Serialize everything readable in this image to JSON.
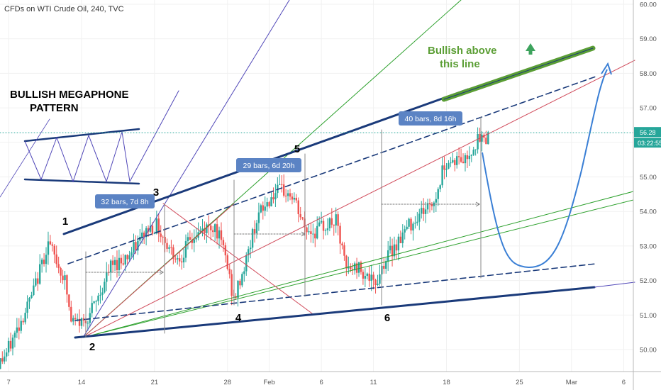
{
  "header": {
    "title": "CFDs on WTI Crude Oil, 240, TVC"
  },
  "chart_data": {
    "type": "candlestick",
    "title": "CFDs on WTI Crude Oil, 240, TVC",
    "yaxis": {
      "side": "right",
      "ylim": [
        49.5,
        60.2
      ],
      "ticks": [
        "60.00",
        "59.00",
        "58.00",
        "57.00",
        "56.00",
        "55.00",
        "54.00",
        "53.00",
        "52.00",
        "51.00",
        "50.00"
      ]
    },
    "xaxis": {
      "ticks": [
        {
          "label": "7",
          "day": 7
        },
        {
          "label": "14",
          "day": 14
        },
        {
          "label": "21",
          "day": 21
        },
        {
          "label": "28",
          "day": 28
        },
        {
          "label": "Feb",
          "day": 32
        },
        {
          "label": "6",
          "day": 37
        },
        {
          "label": "11",
          "day": 42
        },
        {
          "label": "18",
          "day": 49
        },
        {
          "label": "25",
          "day": 56
        },
        {
          "label": "Mar",
          "day": 61
        },
        {
          "label": "6",
          "day": 66
        }
      ]
    },
    "current_price": {
      "price": "56.28",
      "countdown": "03:22:55"
    },
    "up_color": "#26a69a",
    "down_color": "#ef5350",
    "swing_points": [
      {
        "label": "1",
        "day": 12.6,
        "price": 53.2
      },
      {
        "label": "2",
        "day": 14.4,
        "price": 50.4
      },
      {
        "label": "3",
        "day": 21.4,
        "price": 54.3
      },
      {
        "label": "4",
        "day": 29.0,
        "price": 51.3
      },
      {
        "label": "5",
        "day": 32.6,
        "price": 55.8
      },
      {
        "label": "6",
        "day": 42.3,
        "price": 51.2
      }
    ],
    "annotations": {
      "pattern_title": [
        "BULLISH MEGAPHONE",
        "PATTERN"
      ],
      "bullish_note": [
        "Bullish above",
        "this line"
      ]
    },
    "measurements": [
      {
        "text": "32 bars, 7d 8h"
      },
      {
        "text": "29 bars, 6d 20h"
      },
      {
        "text": "40 bars, 8d 16h"
      }
    ],
    "colors": {
      "trend_line": "#1a3a7a",
      "bull_line": "#5b9e35",
      "projection": "#3a7fd5",
      "gann_fan": "#2ca02c",
      "gann_fan_red": "#d04a5a",
      "gann_fan_purple": "#5047b8",
      "measure_label": "#5b83c4",
      "price_tag": "#26a69a"
    }
  }
}
